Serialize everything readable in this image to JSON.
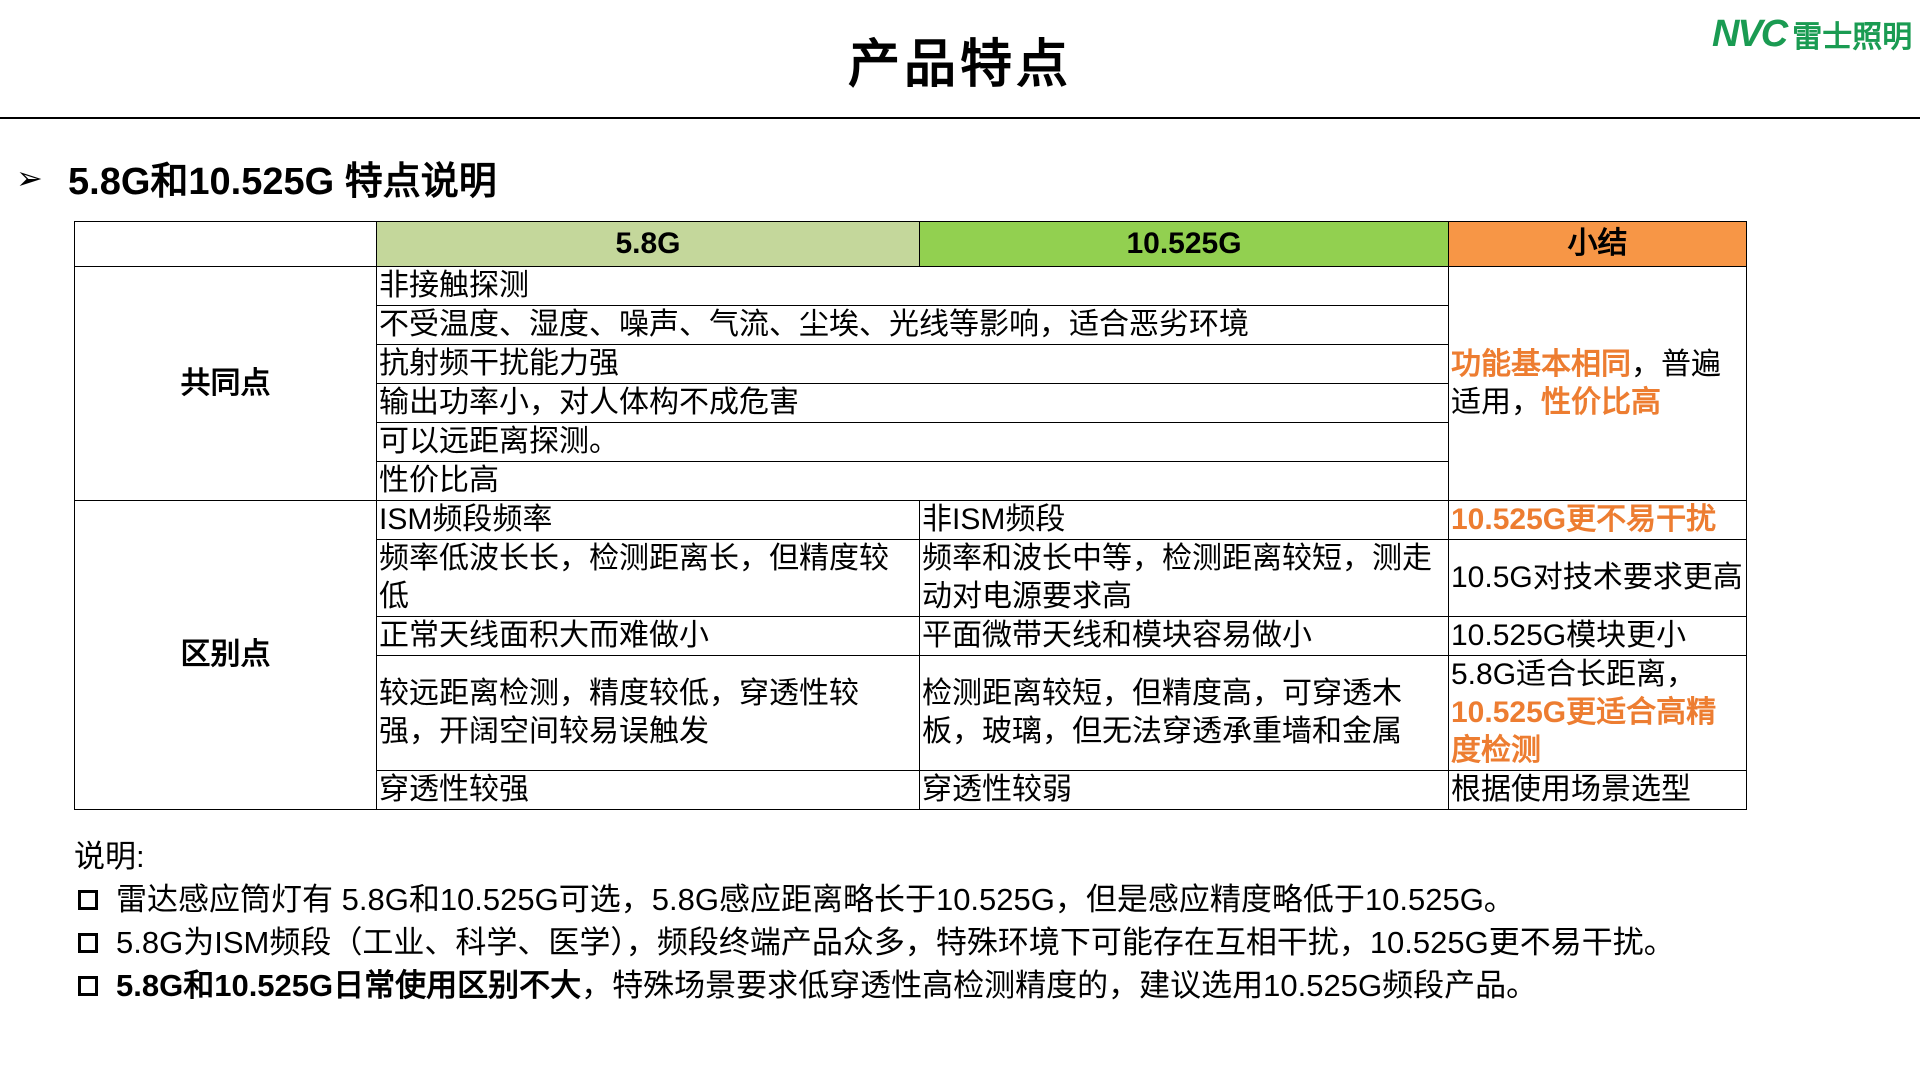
{
  "title": "产品特点",
  "logo": {
    "mark": "NVC",
    "name": "雷士照明",
    "color": "#1a9b52"
  },
  "section": {
    "arrow_icon": "arrow-bullet",
    "heading": "5.8G和10.525G 特点说明"
  },
  "table": {
    "headers": [
      "",
      "5.8G",
      "10.525G",
      "小结"
    ],
    "header_colors": [
      "#ffffff",
      "#c4d79b",
      "#92d050",
      "#f79646"
    ],
    "common": {
      "label": "共同点",
      "rows": [
        "非接触探测",
        "不受温度、湿度、噪声、气流、尘埃、光线等影响，适合恶劣环境",
        "抗射频干扰能力强",
        "输出功率小，对人体构不成危害",
        "可以远距离探测。",
        "性价比高"
      ],
      "summary": {
        "part1": "功能基本相同",
        "part2": "，普遍适用，",
        "part3": "性价比高"
      }
    },
    "diff": {
      "label": "区别点",
      "rows": [
        {
          "a": "ISM频段频率",
          "b": "非ISM频段",
          "s": "10.525G更不易干扰",
          "s_highlight": true
        },
        {
          "a": "频率低波长长，检测距离长，但精度较低",
          "b": "频率和波长中等，检测距离较短，测走动对电源要求高",
          "s": "10.5G对技术要求更高"
        },
        {
          "a": "正常天线面积大而难做小",
          "b": "平面微带天线和模块容易做小",
          "s": "10.525G模块更小"
        },
        {
          "a": "较远距离检测，精度较低，穿透性较强，开阔空间较易误触发",
          "b": "检测距离较短，但精度高，可穿透木板，玻璃，但无法穿透承重墙和金属",
          "s": "5.8G适合长距离，",
          "s2": "10.525G更适合高精度检测"
        },
        {
          "a": "穿透性较强",
          "b": "穿透性较弱",
          "s": "根据使用场景选型"
        }
      ]
    },
    "highlight_color": "#ed7d31"
  },
  "notes": {
    "label": "说明:",
    "items": [
      {
        "bold": "",
        "text": "雷达感应筒灯有 5.8G和10.525G可选，5.8G感应距离略长于10.525G，但是感应精度略低于10.525G。"
      },
      {
        "bold": "",
        "text": "5.8G为ISM频段（工业、科学、医学），频段终端产品众多，特殊环境下可能存在互相干扰，10.525G更不易干扰。"
      },
      {
        "bold": "5.8G和10.525G日常使用区别不大",
        "text": "，特殊场景要求低穿透性高检测精度的，建议选用10.525G频段产品。"
      }
    ]
  }
}
